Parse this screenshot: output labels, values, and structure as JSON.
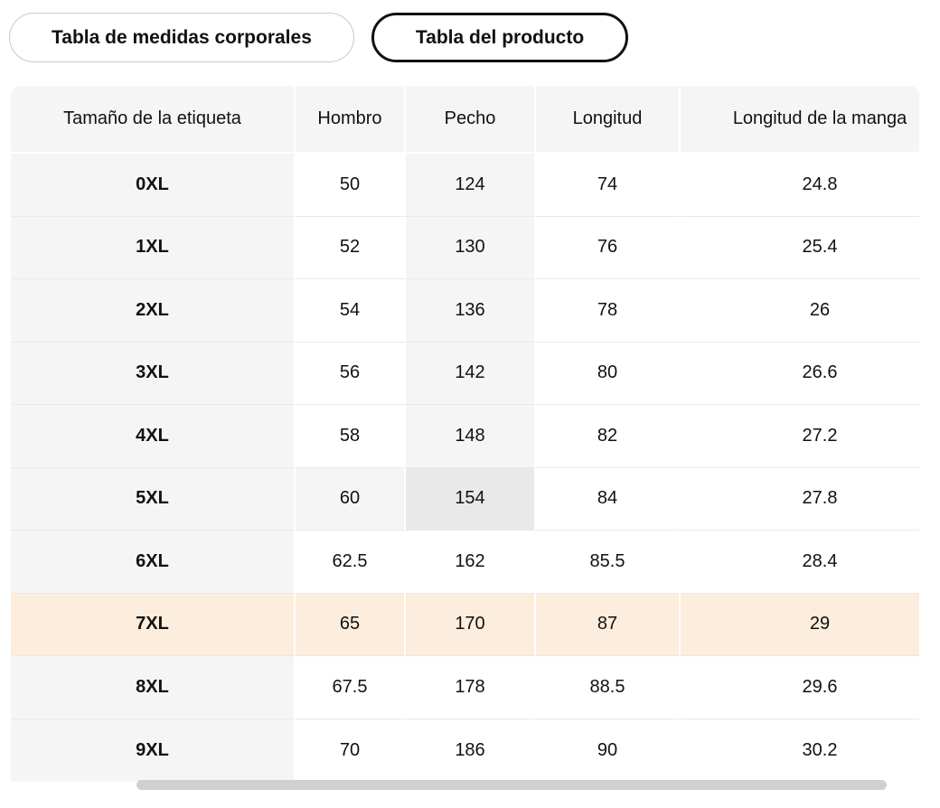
{
  "tabs": [
    {
      "label": "Tabla de medidas corporales",
      "selected": false
    },
    {
      "label": "Tabla del producto",
      "selected": true
    }
  ],
  "size_table": {
    "columns": [
      "Tamaño de la etiqueta",
      "Hombro",
      "Pecho",
      "Longitud",
      "Longitud de la manga"
    ],
    "rows": [
      {
        "size": "0XL",
        "values": [
          "50",
          "124",
          "74",
          "24.8"
        ]
      },
      {
        "size": "1XL",
        "values": [
          "52",
          "130",
          "76",
          "25.4"
        ]
      },
      {
        "size": "2XL",
        "values": [
          "54",
          "136",
          "78",
          "26"
        ]
      },
      {
        "size": "3XL",
        "values": [
          "56",
          "142",
          "80",
          "26.6"
        ]
      },
      {
        "size": "4XL",
        "values": [
          "58",
          "148",
          "82",
          "27.2"
        ]
      },
      {
        "size": "5XL",
        "values": [
          "60",
          "154",
          "84",
          "27.8"
        ]
      },
      {
        "size": "6XL",
        "values": [
          "62.5",
          "162",
          "85.5",
          "28.4"
        ]
      },
      {
        "size": "7XL",
        "values": [
          "65",
          "170",
          "87",
          "29"
        ]
      },
      {
        "size": "8XL",
        "values": [
          "67.5",
          "178",
          "88.5",
          "29.6"
        ]
      },
      {
        "size": "9XL",
        "values": [
          "70",
          "186",
          "90",
          "30.2"
        ]
      }
    ],
    "highlight": {
      "crosshair_row_index": 5,
      "crosshair_col_index": 2,
      "selected_row_index": 7,
      "crosshair_row_size": "5XL",
      "crosshair_column": "Pecho",
      "intersection_value": "154",
      "selected_row_size": "7XL"
    },
    "colors": {
      "text": "#111111",
      "header_bg": "#f5f5f6",
      "crosshair_bg": "#f5f5f6",
      "intersection_bg": "#e9e9ea",
      "selected_row_bg": "#fceddc",
      "grid_line": "#e9e9e9",
      "selected_tab_border": "#111111",
      "unselected_tab_border": "#c9c9c9",
      "scrollbar_thumb": "#d0d0d0"
    }
  }
}
